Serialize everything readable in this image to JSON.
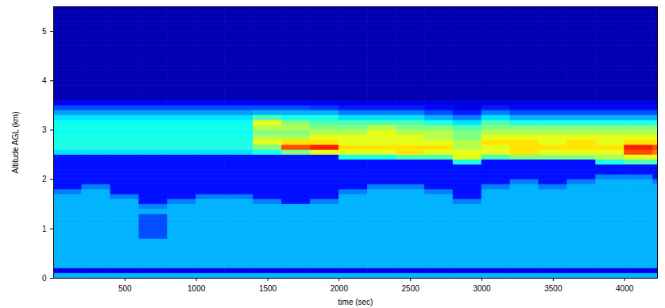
{
  "chart_data": {
    "type": "heatmap",
    "x_label": "time (sec)",
    "y_label": "Altitude AGL (km)",
    "xlim": [
      0,
      4230
    ],
    "xticks": [
      500,
      1000,
      1500,
      2000,
      2500,
      3000,
      3500,
      4000
    ],
    "ylim": [
      0,
      5.5
    ],
    "yticks": [
      0,
      1,
      2,
      3,
      4,
      5
    ],
    "color_range": [
      0,
      10
    ],
    "x_bins": [
      0,
      200,
      400,
      600,
      800,
      1000,
      1200,
      1400,
      1600,
      1800,
      2000,
      2200,
      2400,
      2600,
      2800,
      3000,
      3200,
      3400,
      3600,
      3800,
      4000,
      4200,
      4230
    ],
    "y_bins": [
      0,
      0.1,
      0.2,
      0.3,
      0.4,
      0.5,
      0.6,
      0.7,
      0.8,
      0.9,
      1,
      1.1,
      1.2,
      1.3,
      1.4,
      1.5,
      1.6,
      1.7,
      1.8,
      1.9,
      2,
      2.1,
      2.2,
      2.3,
      2.4,
      2.5,
      2.6,
      2.7,
      2.8,
      2.9,
      3,
      3.1,
      3.2,
      3.3,
      3.4,
      3.5,
      3.6,
      3.7,
      3.8,
      3.9,
      4,
      4.1,
      4.2,
      4.3,
      4.4,
      4.5,
      4.6,
      4.7,
      4.8,
      4.9,
      5,
      5.1,
      5.2,
      5.3,
      5.4,
      5.5
    ],
    "values": [
      [
        3,
        3,
        3,
        3,
        3,
        3,
        3,
        3,
        3,
        3,
        3,
        3,
        3,
        3,
        3,
        3,
        3,
        3,
        3,
        3,
        3,
        3
      ],
      [
        1,
        1,
        1,
        1,
        1,
        1,
        1,
        1,
        1,
        1,
        1,
        1,
        1,
        1,
        1,
        1,
        1,
        1,
        1,
        1,
        1,
        1
      ],
      [
        3,
        3,
        3,
        3,
        3,
        3,
        3,
        3,
        3,
        3,
        3,
        3,
        3,
        3,
        3,
        3,
        3,
        3,
        3,
        3,
        3,
        3
      ],
      [
        3,
        3,
        3,
        3,
        3,
        3,
        3,
        3,
        3,
        3,
        3,
        3,
        3,
        3,
        3,
        3,
        3,
        3,
        3,
        3,
        3,
        3
      ],
      [
        3,
        3,
        3,
        3,
        3,
        3,
        3,
        3,
        3,
        3,
        3,
        3,
        3,
        3,
        3,
        3,
        3,
        3,
        3,
        3,
        3,
        3
      ],
      [
        3,
        3,
        3,
        3,
        3,
        3,
        3,
        3,
        3,
        3,
        3,
        3,
        3,
        3,
        3,
        3,
        3,
        3,
        3,
        3,
        3,
        3
      ],
      [
        3,
        3,
        3,
        3,
        3,
        3,
        3,
        3,
        3,
        3,
        3,
        3,
        3,
        3,
        3,
        3,
        3,
        3,
        3,
        3,
        3,
        3
      ],
      [
        3,
        3,
        3,
        3,
        3,
        3,
        3,
        3,
        3,
        3,
        3,
        3,
        3,
        3,
        3,
        3,
        3,
        3,
        3,
        3,
        3,
        3
      ],
      [
        3,
        3,
        3,
        2,
        3,
        3,
        3,
        3,
        3,
        3,
        3,
        3,
        3,
        3,
        3,
        3,
        3,
        3,
        3,
        3,
        3,
        3
      ],
      [
        3,
        3,
        3,
        2,
        3,
        3,
        3,
        3,
        3,
        3,
        3,
        3,
        3,
        3,
        3,
        3,
        3,
        3,
        3,
        3,
        3,
        3
      ],
      [
        3,
        3,
        3,
        2,
        3,
        3,
        3,
        3,
        3,
        3,
        3,
        3,
        3,
        3,
        3,
        3,
        3,
        3,
        3,
        3,
        3,
        3
      ],
      [
        3,
        3,
        3,
        2,
        3,
        3,
        3,
        3,
        3,
        3,
        3,
        3,
        3,
        3,
        3,
        3,
        3,
        3,
        3,
        3,
        3,
        3
      ],
      [
        3,
        3,
        3,
        2,
        3,
        3,
        3,
        3,
        3,
        3,
        3,
        3,
        3,
        3,
        3,
        3,
        3,
        3,
        3,
        3,
        3,
        3
      ],
      [
        3,
        3,
        3,
        3,
        3,
        3,
        3,
        3,
        3,
        3,
        3,
        3,
        3,
        3,
        3,
        3,
        3,
        3,
        3,
        3,
        3,
        3
      ],
      [
        3,
        3,
        3,
        2.5,
        3,
        3,
        3,
        3,
        3,
        3,
        3,
        3,
        3,
        3,
        3,
        3,
        3,
        3,
        3,
        3,
        3,
        3
      ],
      [
        3,
        3,
        3,
        1.4,
        2.5,
        3,
        3,
        2.5,
        1.4,
        2.5,
        3,
        3,
        3,
        3,
        2.5,
        3,
        3,
        3,
        3,
        3,
        3,
        3
      ],
      [
        3,
        3,
        2.5,
        1.4,
        1.4,
        2.5,
        2.5,
        1.4,
        1.4,
        1.4,
        3,
        3,
        3,
        3,
        1.4,
        3,
        3,
        3,
        3,
        3,
        3,
        3
      ],
      [
        2.5,
        3,
        1.4,
        1.4,
        1.4,
        1.4,
        1.4,
        1.4,
        1.4,
        1.4,
        2.5,
        3,
        3,
        2.5,
        1.4,
        3,
        3,
        3,
        3,
        3,
        3,
        3
      ],
      [
        1.4,
        2.5,
        1.4,
        1.4,
        1.4,
        1.4,
        1.4,
        1.4,
        1.4,
        1.4,
        1.4,
        2.5,
        2.5,
        1.4,
        1.4,
        2.5,
        3,
        2.5,
        3,
        3,
        3,
        3
      ],
      [
        1.4,
        1.4,
        1.4,
        1.4,
        1.4,
        1.4,
        1.4,
        1.4,
        1.4,
        1.4,
        1.4,
        1.4,
        1.4,
        1.4,
        1.4,
        1.4,
        2.5,
        1.4,
        2.5,
        3,
        3,
        2.5
      ],
      [
        1.4,
        1.4,
        1.4,
        1.4,
        1.4,
        1.4,
        1.4,
        1.4,
        1.4,
        1.4,
        1.4,
        1.4,
        1.4,
        1.4,
        1.4,
        1.4,
        1.4,
        1.4,
        1.4,
        2.5,
        2.5,
        1.4
      ],
      [
        1.4,
        1.4,
        1.4,
        1.4,
        1.4,
        1.4,
        1.4,
        1.4,
        1.4,
        1.4,
        1.4,
        1.4,
        1.4,
        1.4,
        1.4,
        1.4,
        1.4,
        1.4,
        1.4,
        1.4,
        1.4,
        1.4
      ],
      [
        1.4,
        1.4,
        1.4,
        1.4,
        1.4,
        1.4,
        1.4,
        1.4,
        1.4,
        1.4,
        1.4,
        1.4,
        1.4,
        1.4,
        1.4,
        1.4,
        1.4,
        1.4,
        1.4,
        1.4,
        1.4,
        1.4
      ],
      [
        1.4,
        1.4,
        1.4,
        1.4,
        1.4,
        1.4,
        1.4,
        1.4,
        1.4,
        1.4,
        1.4,
        1.4,
        1.4,
        1.4,
        4,
        1.4,
        1.4,
        1.4,
        1.4,
        4,
        4.5,
        4.5
      ],
      [
        1.4,
        1.4,
        1.4,
        1.4,
        1.4,
        1.4,
        1.4,
        1.4,
        1.4,
        1.4,
        4,
        4,
        4.5,
        4.5,
        6,
        4.5,
        5,
        5,
        5,
        5.5,
        6,
        6
      ],
      [
        3.5,
        3.5,
        3.5,
        3.5,
        3.5,
        3.5,
        3.5,
        4,
        5,
        6,
        6,
        6,
        6.5,
        6,
        6,
        6,
        6.5,
        6,
        6,
        6,
        8,
        7.5
      ],
      [
        4,
        4,
        4,
        4,
        4,
        4,
        4,
        5,
        8,
        8.5,
        6.5,
        6.5,
        6.5,
        6.5,
        5.5,
        6,
        6.5,
        6.5,
        6.5,
        6.5,
        8.5,
        8
      ],
      [
        4,
        4,
        4,
        4,
        4,
        4,
        4,
        6,
        6.5,
        6.5,
        6,
        6,
        6,
        6,
        5.5,
        6.5,
        6.5,
        6,
        6.5,
        6,
        6.5,
        6.5
      ],
      [
        4,
        4,
        4,
        4,
        4,
        4,
        4,
        5.5,
        5.5,
        6,
        6,
        6,
        6,
        5.5,
        5,
        6,
        6,
        6,
        6,
        6,
        6,
        6
      ],
      [
        3.8,
        3.8,
        3.8,
        3.8,
        3.8,
        3.8,
        3.8,
        5,
        5,
        5.5,
        5.5,
        6,
        5.5,
        5.5,
        5,
        5.5,
        5.5,
        5.5,
        5.5,
        5.5,
        5.5,
        5.5
      ],
      [
        4,
        4,
        4,
        4,
        4,
        4,
        4,
        5.5,
        5.5,
        5,
        5,
        5.5,
        5,
        5,
        4.5,
        5,
        5,
        5,
        5,
        5,
        5,
        5
      ],
      [
        3.8,
        3.8,
        3.8,
        3.8,
        3.8,
        3.8,
        3.8,
        6,
        5,
        4.5,
        4.5,
        4.5,
        4.5,
        4,
        3.5,
        4.5,
        4,
        4,
        4,
        4,
        4,
        4
      ],
      [
        3.5,
        3.5,
        3.5,
        3.5,
        3.5,
        3.5,
        3.5,
        4.5,
        4,
        4,
        3.5,
        3.5,
        3.5,
        3,
        2.5,
        3.5,
        3,
        3,
        3,
        3,
        3,
        3
      ],
      [
        2.8,
        2.8,
        2.8,
        2.8,
        2.8,
        2.8,
        2.8,
        3,
        3,
        3,
        2.5,
        2.5,
        2.5,
        2,
        1.5,
        2.5,
        2,
        2,
        2,
        2,
        2,
        2
      ],
      [
        2,
        2,
        2,
        2,
        2,
        2,
        2,
        2,
        2,
        1.8,
        1.5,
        1.5,
        1.5,
        1.3,
        1,
        1.5,
        1.3,
        1.3,
        1.3,
        1.3,
        1.3,
        1.3
      ],
      [
        1.2,
        1.2,
        1.2,
        1.2,
        1.2,
        1.2,
        1.2,
        1.2,
        1.2,
        1.1,
        1,
        1,
        1,
        1,
        1,
        1,
        1,
        1,
        1,
        1,
        1,
        1
      ],
      [
        0.5,
        0.5,
        0.5,
        0.5,
        0.5,
        0.5,
        0.5,
        0.5,
        0.5,
        0.5,
        0.5,
        0.5,
        0.5,
        0.5,
        0.5,
        0.5,
        0.5,
        0.5,
        0.5,
        0.5,
        0.5,
        0.5
      ],
      [
        0.5,
        0.5,
        0.5,
        0.5,
        0.5,
        0.5,
        0.5,
        0.5,
        0.5,
        0.5,
        0.5,
        0.5,
        0.5,
        0.5,
        0.5,
        0.5,
        0.5,
        0.5,
        0.5,
        0.5,
        0.5,
        0.5
      ],
      [
        0.5,
        0.5,
        0.5,
        0.5,
        0.5,
        0.5,
        0.5,
        0.5,
        0.5,
        0.5,
        0.5,
        0.5,
        0.5,
        0.5,
        0.5,
        0.5,
        0.5,
        0.5,
        0.5,
        0.5,
        0.5,
        0.5
      ],
      [
        0.5,
        0.5,
        0.5,
        0.5,
        0.5,
        0.5,
        0.5,
        0.5,
        0.5,
        0.5,
        0.5,
        0.5,
        0.5,
        0.5,
        0.5,
        0.5,
        0.5,
        0.5,
        0.5,
        0.5,
        0.5,
        0.5
      ],
      [
        0.5,
        0.5,
        0.5,
        0.5,
        0.5,
        0.5,
        0.5,
        0.5,
        0.5,
        0.5,
        0.5,
        0.5,
        0.5,
        0.5,
        0.5,
        0.5,
        0.5,
        0.5,
        0.5,
        0.5,
        0.5,
        0.5
      ],
      [
        0.5,
        0.5,
        0.5,
        0.5,
        0.5,
        0.5,
        0.5,
        0.5,
        0.5,
        0.5,
        0.5,
        0.5,
        0.5,
        0.5,
        0.5,
        0.5,
        0.5,
        0.5,
        0.5,
        0.5,
        0.5,
        0.5
      ],
      [
        0.5,
        0.5,
        0.5,
        0.5,
        0.5,
        0.5,
        0.5,
        0.5,
        0.5,
        0.5,
        0.5,
        0.5,
        0.5,
        0.5,
        0.5,
        0.5,
        0.5,
        0.5,
        0.5,
        0.5,
        0.5,
        0.5
      ],
      [
        0.5,
        0.5,
        0.5,
        0.5,
        0.5,
        0.5,
        0.5,
        0.5,
        0.5,
        0.5,
        0.5,
        0.5,
        0.5,
        0.5,
        0.5,
        0.5,
        0.5,
        0.5,
        0.5,
        0.5,
        0.5,
        0.5
      ],
      [
        0.5,
        0.5,
        0.5,
        0.5,
        0.5,
        0.5,
        0.5,
        0.5,
        0.5,
        0.5,
        0.5,
        0.5,
        0.5,
        0.5,
        0.5,
        0.5,
        0.5,
        0.5,
        0.5,
        0.5,
        0.5,
        0.5
      ],
      [
        0.5,
        0.5,
        0.5,
        0.5,
        0.5,
        0.5,
        0.5,
        0.5,
        0.5,
        0.5,
        0.5,
        0.5,
        0.5,
        0.5,
        0.5,
        0.5,
        0.5,
        0.5,
        0.5,
        0.5,
        0.5,
        0.5
      ],
      [
        0.5,
        0.5,
        0.5,
        0.5,
        0.5,
        0.5,
        0.5,
        0.5,
        0.5,
        0.5,
        0.5,
        0.5,
        0.5,
        0.5,
        0.5,
        0.5,
        0.5,
        0.5,
        0.5,
        0.5,
        0.5,
        0.5
      ],
      [
        0.5,
        0.5,
        0.5,
        0.5,
        0.5,
        0.5,
        0.5,
        0.5,
        0.5,
        0.5,
        0.5,
        0.5,
        0.5,
        0.5,
        0.5,
        0.5,
        0.5,
        0.5,
        0.5,
        0.5,
        0.5,
        0.5
      ],
      [
        0.5,
        0.5,
        0.5,
        0.5,
        0.5,
        0.5,
        0.5,
        0.5,
        0.5,
        0.5,
        0.5,
        0.5,
        0.5,
        0.5,
        0.5,
        0.5,
        0.5,
        0.5,
        0.5,
        0.5,
        0.5,
        0.5
      ],
      [
        0.5,
        0.5,
        0.5,
        0.5,
        0.5,
        0.5,
        0.5,
        0.5,
        0.5,
        0.5,
        0.5,
        0.5,
        0.5,
        0.5,
        0.5,
        0.5,
        0.5,
        0.5,
        0.5,
        0.5,
        0.5,
        0.5
      ],
      [
        0.5,
        0.5,
        0.5,
        0.5,
        0.5,
        0.5,
        0.5,
        0.5,
        0.5,
        0.5,
        0.5,
        0.5,
        0.5,
        0.5,
        0.5,
        0.5,
        0.5,
        0.5,
        0.5,
        0.5,
        0.5,
        0.5
      ],
      [
        0.5,
        0.5,
        0.5,
        0.5,
        0.5,
        0.5,
        0.5,
        0.5,
        0.5,
        0.5,
        0.5,
        0.5,
        0.5,
        0.5,
        0.5,
        0.5,
        0.5,
        0.5,
        0.5,
        0.5,
        0.5,
        0.5
      ],
      [
        0.5,
        0.5,
        0.5,
        0.5,
        0.5,
        0.5,
        0.5,
        0.5,
        0.5,
        0.5,
        0.5,
        0.5,
        0.5,
        0.5,
        0.5,
        0.5,
        0.5,
        0.5,
        0.5,
        0.5,
        0.5,
        0.5
      ],
      [
        0.5,
        0.5,
        0.5,
        0.5,
        0.5,
        0.5,
        0.5,
        0.5,
        0.5,
        0.5,
        0.5,
        0.5,
        0.5,
        0.5,
        0.5,
        0.5,
        0.5,
        0.5,
        0.5,
        0.5,
        0.5,
        0.5
      ],
      [
        0.5,
        0.5,
        0.5,
        0.5,
        0.5,
        0.5,
        0.5,
        0.5,
        0.5,
        0.5,
        0.5,
        0.5,
        0.5,
        0.5,
        0.5,
        0.5,
        0.5,
        0.5,
        0.5,
        0.5,
        0.5,
        0.5
      ]
    ]
  }
}
